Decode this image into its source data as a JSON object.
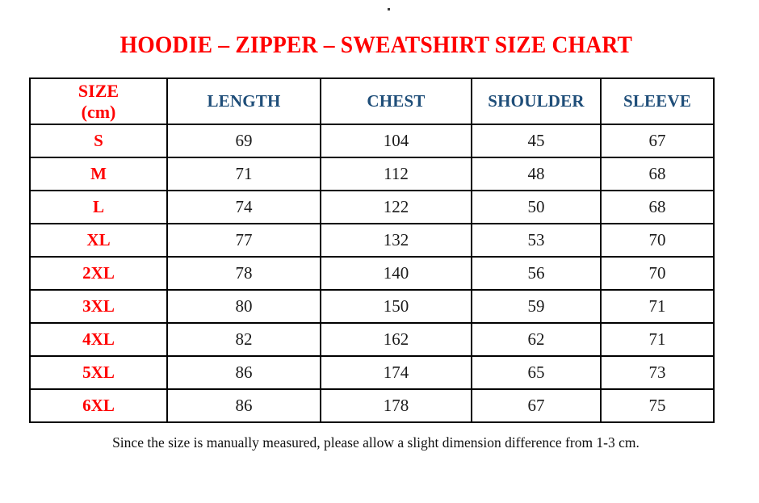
{
  "stray_mark": ".",
  "title": "HOODIE – ZIPPER – SWEATSHIRT SIZE CHART",
  "table": {
    "header": {
      "size_line1": "SIZE",
      "size_line2": "(cm)",
      "columns": [
        "LENGTH",
        "CHEST",
        "SHOULDER",
        "SLEEVE"
      ]
    },
    "rows": [
      {
        "size": "S",
        "length": "69",
        "chest": "104",
        "shoulder": "45",
        "sleeve": "67"
      },
      {
        "size": "M",
        "length": "71",
        "chest": "112",
        "shoulder": "48",
        "sleeve": "68"
      },
      {
        "size": "L",
        "length": "74",
        "chest": "122",
        "shoulder": "50",
        "sleeve": "68"
      },
      {
        "size": "XL",
        "length": "77",
        "chest": "132",
        "shoulder": "53",
        "sleeve": "70"
      },
      {
        "size": "2XL",
        "length": "78",
        "chest": "140",
        "shoulder": "56",
        "sleeve": "70"
      },
      {
        "size": "3XL",
        "length": "80",
        "chest": "150",
        "shoulder": "59",
        "sleeve": "71"
      },
      {
        "size": "4XL",
        "length": "82",
        "chest": "162",
        "shoulder": "62",
        "sleeve": "71"
      },
      {
        "size": "5XL",
        "length": "86",
        "chest": "174",
        "shoulder": "65",
        "sleeve": "73"
      },
      {
        "size": "6XL",
        "length": "86",
        "chest": "178",
        "shoulder": "67",
        "sleeve": "75"
      }
    ]
  },
  "note": "Since the size is manually measured, please allow a slight dimension difference from 1-3 cm.",
  "colors": {
    "title_red": "#ff0000",
    "header_blue": "#1f4e79",
    "text_black": "#1a1a1a",
    "border_black": "#000000"
  }
}
